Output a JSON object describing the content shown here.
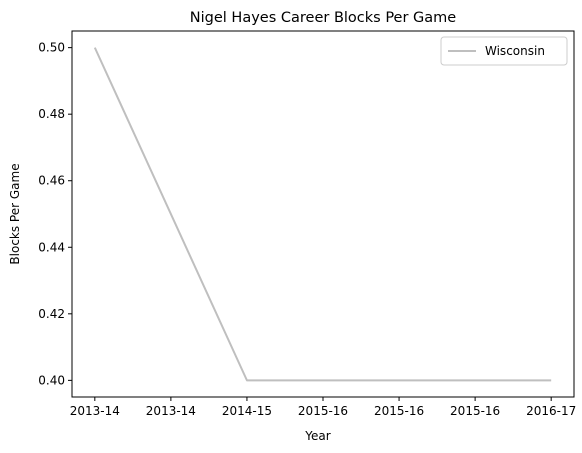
{
  "chart_data": {
    "type": "line",
    "title": "Nigel Hayes Career Blocks Per Game",
    "xlabel": "Year",
    "ylabel": "Blocks Per Game",
    "x_tick_labels": [
      "2013-14",
      "2013-14",
      "2014-15",
      "2015-16",
      "2015-16",
      "2015-16",
      "2016-17"
    ],
    "x": [
      0,
      2,
      6
    ],
    "y_ticks": [
      0.4,
      0.42,
      0.44,
      0.46,
      0.48,
      0.5
    ],
    "y_tick_labels": [
      "0.40",
      "0.42",
      "0.44",
      "0.46",
      "0.48",
      "0.50"
    ],
    "ylim": [
      0.395,
      0.505
    ],
    "xlim": [
      -0.3,
      6.3
    ],
    "series": [
      {
        "name": "Wisconsin",
        "color": "#bfbfbf",
        "values": [
          0.5,
          0.4,
          0.4
        ]
      }
    ],
    "legend": "top-right",
    "grid": false
  }
}
